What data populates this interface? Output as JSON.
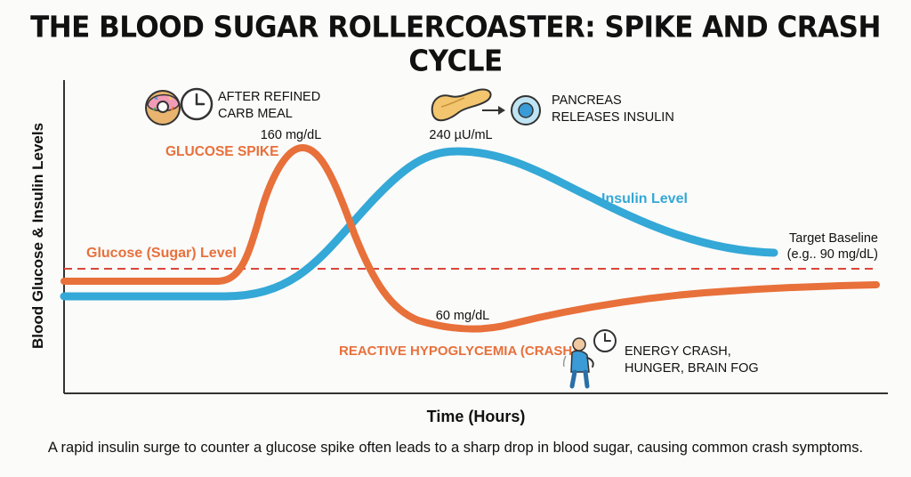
{
  "title": "THE BLOOD SUGAR ROLLERCOASTER: SPIKE AND CRASH CYCLE",
  "caption": "A rapid insulin surge to counter a glucose spike often leads to a sharp drop in blood sugar, causing common crash symptoms.",
  "axes": {
    "x_label": "Time (Hours)",
    "y_label": "Blood Glucose & Insulin Levels"
  },
  "series": {
    "glucose": {
      "label": "Glucose (Sugar) Level",
      "color": "#e8703a"
    },
    "insulin": {
      "label": "Insulin Level",
      "color": "#34a8d6"
    },
    "baseline": {
      "label_line1": "Target Baseline",
      "label_line2": "(e.g.. 90 mg/dL)",
      "color": "#d9473a"
    }
  },
  "annotations": {
    "meal_line1": "AFTER REFINED",
    "meal_line2": "CARB MEAL",
    "spike_label": "GLUCOSE SPIKE",
    "spike_value": "160 mg/dL",
    "insulin_peak_value": "240 µU/mL",
    "pancreas_line1": "PANCREAS",
    "pancreas_line2": "RELEASES INSULIN",
    "crash_value": "60 mg/dL",
    "crash_label": "REACTIVE HYPOGLYCEMIA (CRASH)",
    "symptoms_line1": "ENERGY CRASH,",
    "symptoms_line2": "HUNGER, BRAIN FOG"
  },
  "icons": [
    "donut-icon",
    "clock-icon",
    "pancreas-icon",
    "arrow-icon",
    "cell-icon",
    "tired-person-icon"
  ]
}
